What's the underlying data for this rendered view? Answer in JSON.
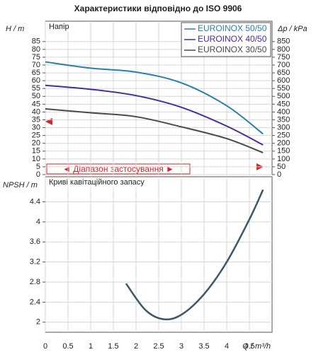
{
  "chart_data": [
    {
      "type": "line",
      "title": "Характеристики відповідно до ISO 9906",
      "subtitle": "Напір",
      "ylabel": "H / m",
      "y2label": "Δp / kPa",
      "annotation": "◄ Діапазон застосування ►",
      "xlim": [
        0,
        5
      ],
      "xticks": [
        0,
        0.5,
        1,
        1.5,
        2,
        2.5,
        3,
        3.5,
        4,
        4.5
      ],
      "ylim": [
        0,
        98
      ],
      "yticks": [
        0,
        5,
        10,
        15,
        20,
        25,
        30,
        35,
        40,
        45,
        50,
        55,
        60,
        65,
        70,
        75,
        80,
        85
      ],
      "y2lim": [
        0,
        980
      ],
      "y2ticks": [
        0,
        50,
        100,
        150,
        200,
        250,
        300,
        350,
        400,
        450,
        500,
        550,
        600,
        650,
        700,
        750,
        800,
        850
      ],
      "grid": true,
      "legend": "upper right",
      "x": [
        0,
        1,
        2,
        3,
        4,
        4.8
      ],
      "series": [
        {
          "name": "EUROINOX 50/50",
          "color": "#2a7fa8",
          "values": [
            72,
            68,
            65.5,
            58.6,
            44,
            26
          ]
        },
        {
          "name": "EUROINOX 40/50",
          "color": "#4b2a9a",
          "values": [
            57,
            54.5,
            50.5,
            43,
            31,
            19
          ]
        },
        {
          "name": "EUROINOX 30/50",
          "color": "#444a52",
          "values": [
            42,
            39.5,
            37,
            30.5,
            23,
            14
          ]
        }
      ]
    },
    {
      "type": "line",
      "subtitle": "Криві кавітаційного запасу",
      "ylabel": "NPSH / m",
      "xlabel": "Q / m³/h",
      "xlim": [
        0,
        5
      ],
      "xticks": [
        0,
        0.5,
        1,
        1.5,
        2,
        2.5,
        3,
        3.5,
        4,
        4.5
      ],
      "ylim": [
        1.8,
        4.9
      ],
      "yticks": [
        2,
        2.4,
        2.8,
        3.2,
        3.6,
        4,
        4.4
      ],
      "grid": true,
      "x": [
        1.78,
        2.2,
        2.6,
        3,
        3.5,
        4,
        4.5,
        4.8
      ],
      "series": [
        {
          "color": "#3a5868",
          "values": [
            2.77,
            2.25,
            2.06,
            2.15,
            2.56,
            3.2,
            4.05,
            4.64
          ]
        }
      ]
    }
  ]
}
